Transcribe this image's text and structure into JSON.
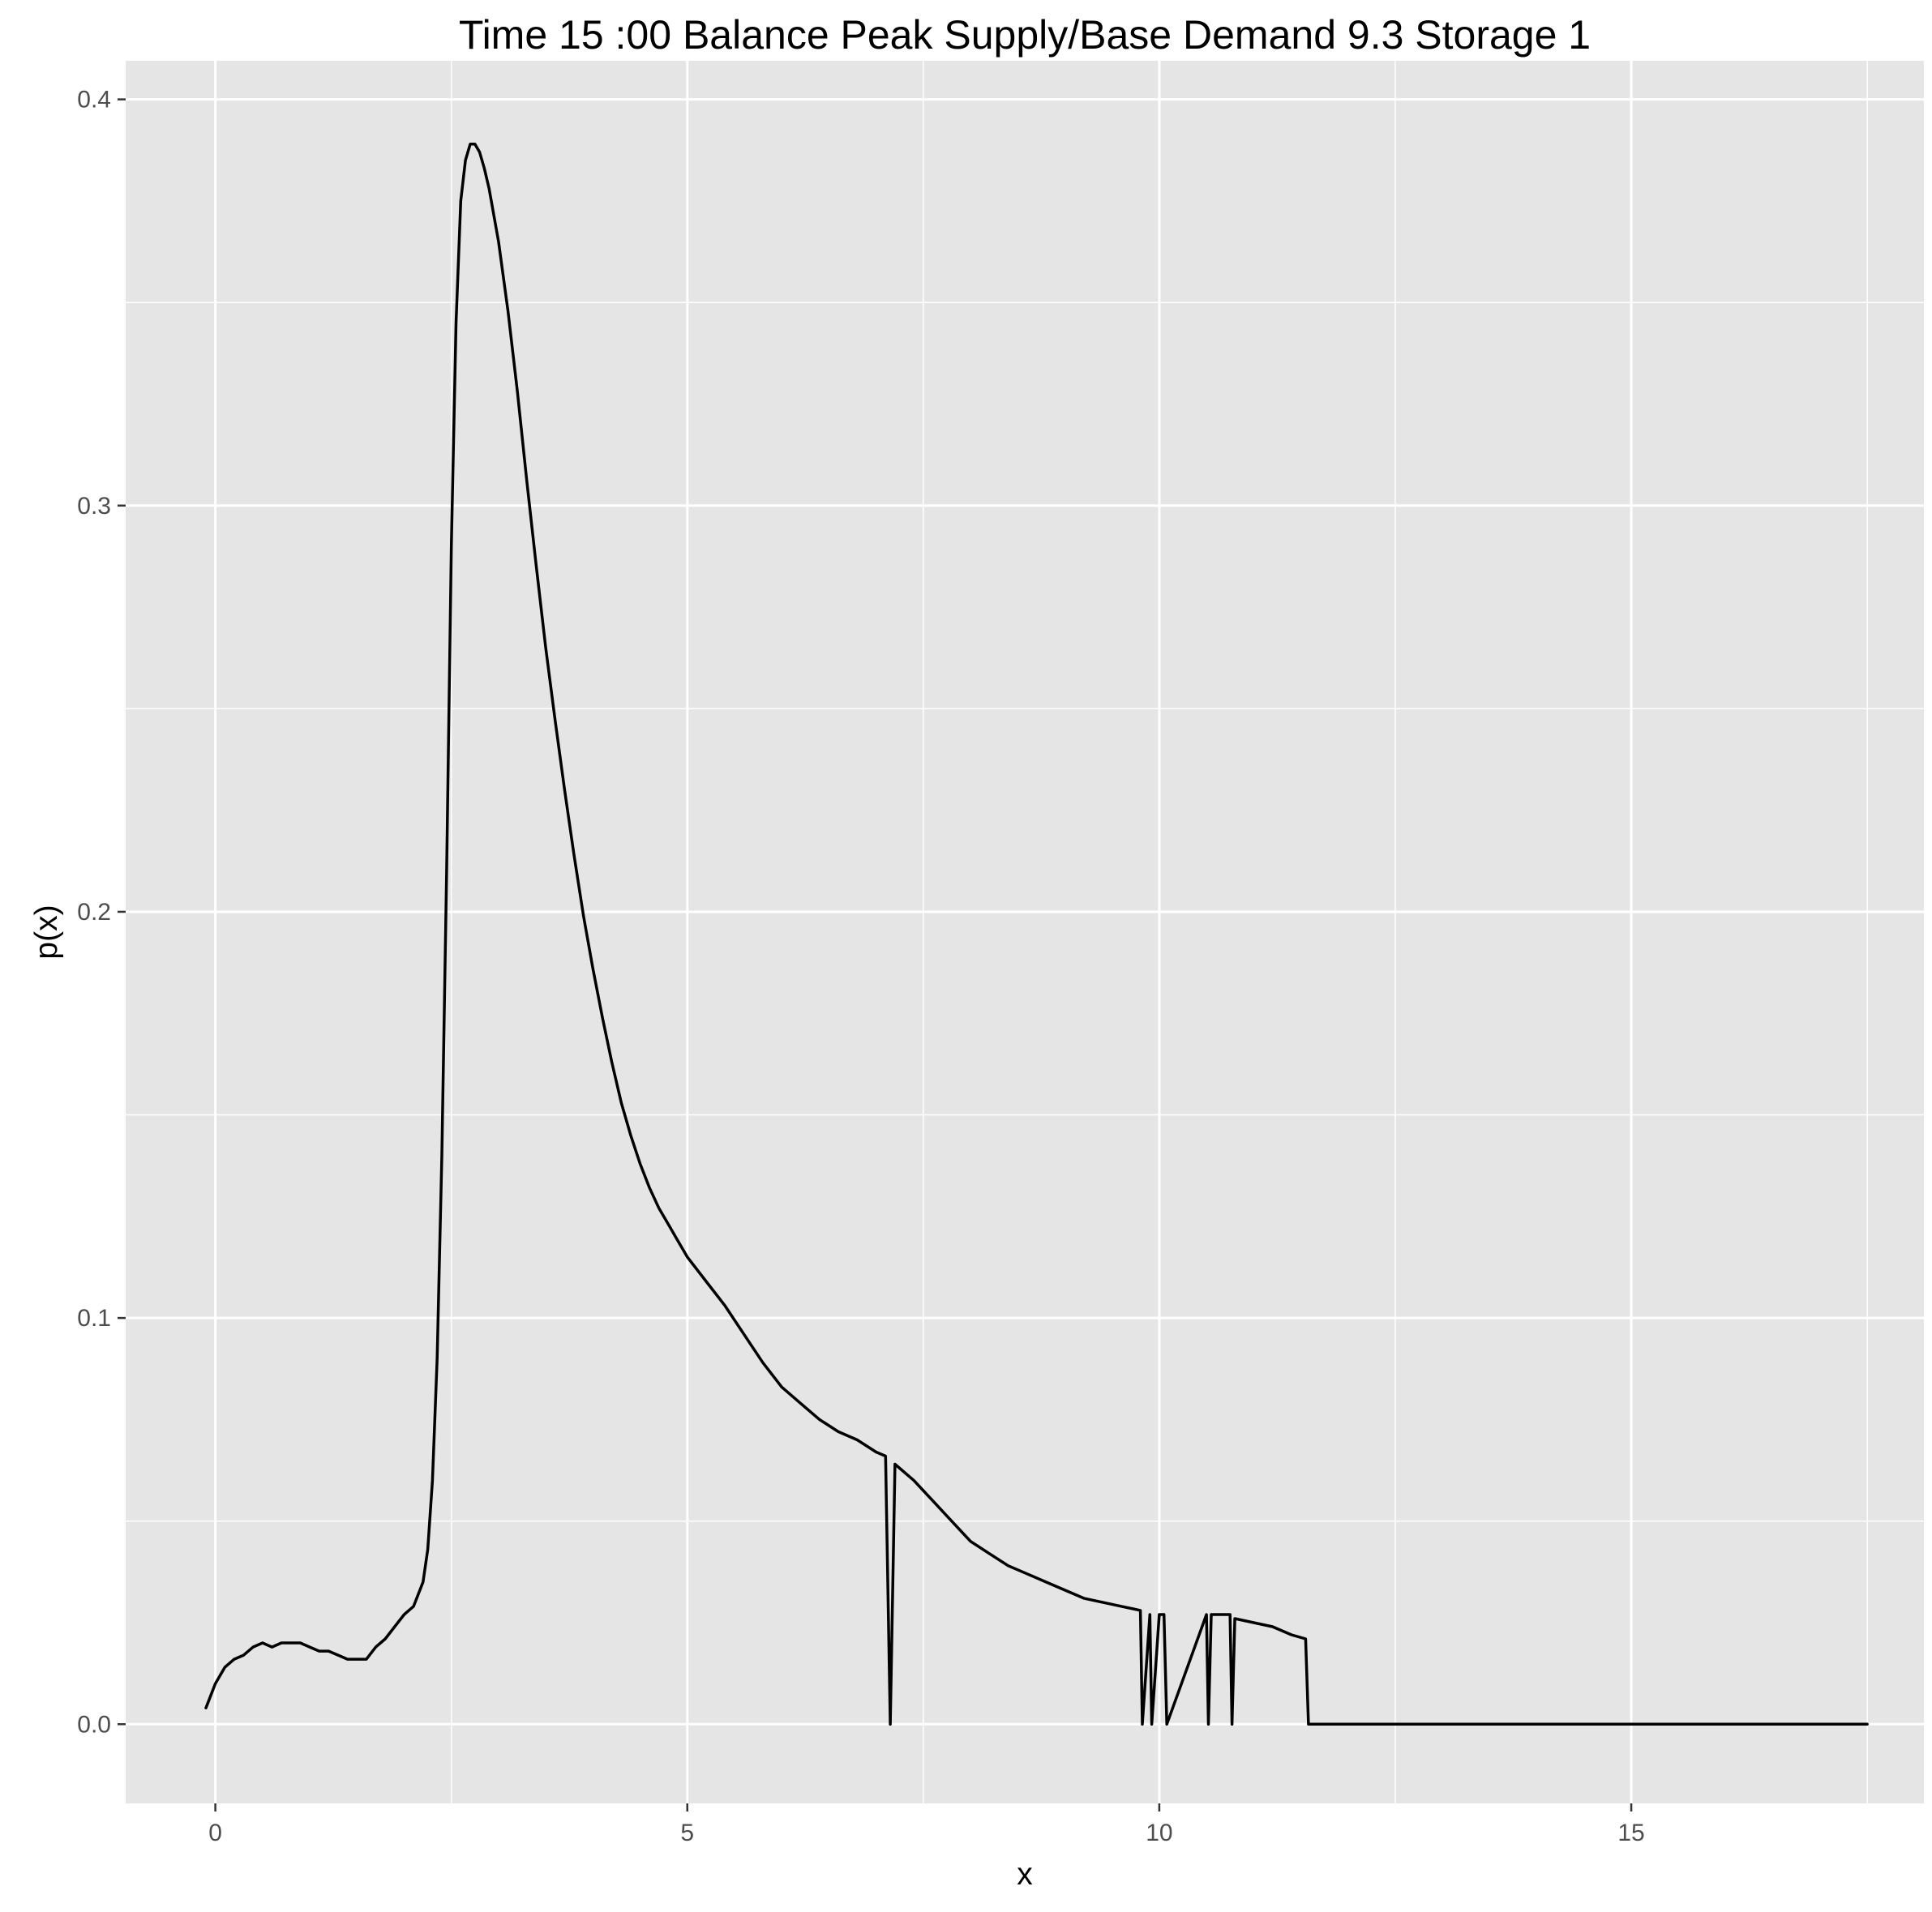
{
  "chart_data": {
    "type": "line",
    "title": "Time  15 :00  Balance   Peak Supply/Base Demand  9.3 Storage 1",
    "xlabel": "x",
    "ylabel": "p(x)",
    "xlim": [
      -0.95,
      18.1
    ],
    "ylim": [
      -0.0195,
      0.4095
    ],
    "x_ticks": [
      0,
      5,
      10,
      15
    ],
    "x_tick_labels": [
      "0",
      "5",
      "10",
      "15"
    ],
    "y_ticks": [
      0.0,
      0.1,
      0.2,
      0.3,
      0.4
    ],
    "y_tick_labels": [
      "0.0",
      "0.1",
      "0.2",
      "0.3",
      "0.4"
    ],
    "grid": true,
    "legend": "none",
    "colors": {
      "panel": "#e5e5e5",
      "grid": "#ffffff",
      "line": "#000000",
      "tick_text": "#4d4d4d"
    },
    "series": [
      {
        "x": [
          -0.1,
          0.0,
          0.1,
          0.2,
          0.3,
          0.4,
          0.5,
          0.6,
          0.7,
          0.8,
          0.9,
          1.0,
          1.1,
          1.2,
          1.3,
          1.4,
          1.5,
          1.6,
          1.7,
          1.75,
          1.8,
          1.9,
          2.0,
          2.1,
          2.2,
          2.25,
          2.3,
          2.35,
          2.4,
          2.45,
          2.5,
          2.55,
          2.6,
          2.65,
          2.7,
          2.75,
          2.8,
          2.85,
          2.9,
          3.0,
          3.1,
          3.2,
          3.3,
          3.4,
          3.5,
          3.6,
          3.7,
          3.8,
          3.9,
          4.0,
          4.1,
          4.2,
          4.3,
          4.4,
          4.5,
          4.6,
          4.7,
          4.8,
          4.9,
          5.0,
          5.2,
          5.4,
          5.6,
          5.8,
          6.0,
          6.2,
          6.4,
          6.6,
          6.8,
          7.0,
          7.1,
          7.15,
          7.2,
          7.4,
          7.6,
          7.8,
          8.0,
          8.2,
          8.4,
          8.6,
          8.8,
          9.0,
          9.2,
          9.4,
          9.6,
          9.8,
          9.82,
          9.9,
          9.92,
          10.0,
          10.05,
          10.08,
          10.5,
          10.52,
          10.55,
          10.75,
          10.77,
          10.8,
          11.0,
          11.2,
          11.4,
          11.55,
          11.58,
          17.5
        ],
        "y": [
          0.004,
          0.01,
          0.014,
          0.016,
          0.017,
          0.019,
          0.02,
          0.019,
          0.02,
          0.02,
          0.02,
          0.019,
          0.018,
          0.018,
          0.017,
          0.016,
          0.016,
          0.016,
          0.019,
          0.02,
          0.021,
          0.024,
          0.027,
          0.029,
          0.035,
          0.043,
          0.06,
          0.09,
          0.14,
          0.21,
          0.29,
          0.345,
          0.375,
          0.385,
          0.389,
          0.389,
          0.387,
          0.383,
          0.378,
          0.365,
          0.348,
          0.328,
          0.306,
          0.285,
          0.265,
          0.247,
          0.23,
          0.214,
          0.199,
          0.186,
          0.174,
          0.163,
          0.153,
          0.145,
          0.138,
          0.132,
          0.127,
          0.123,
          0.119,
          0.115,
          0.109,
          0.103,
          0.096,
          0.089,
          0.083,
          0.079,
          0.075,
          0.072,
          0.07,
          0.067,
          0.066,
          0.0,
          0.064,
          0.06,
          0.055,
          0.05,
          0.045,
          0.042,
          0.039,
          0.037,
          0.035,
          0.033,
          0.031,
          0.03,
          0.029,
          0.028,
          0.0,
          0.027,
          0.0,
          0.027,
          0.027,
          0.0,
          0.027,
          0.0,
          0.027,
          0.027,
          0.0,
          0.026,
          0.025,
          0.024,
          0.022,
          0.021,
          0.0,
          0.0
        ]
      }
    ]
  }
}
